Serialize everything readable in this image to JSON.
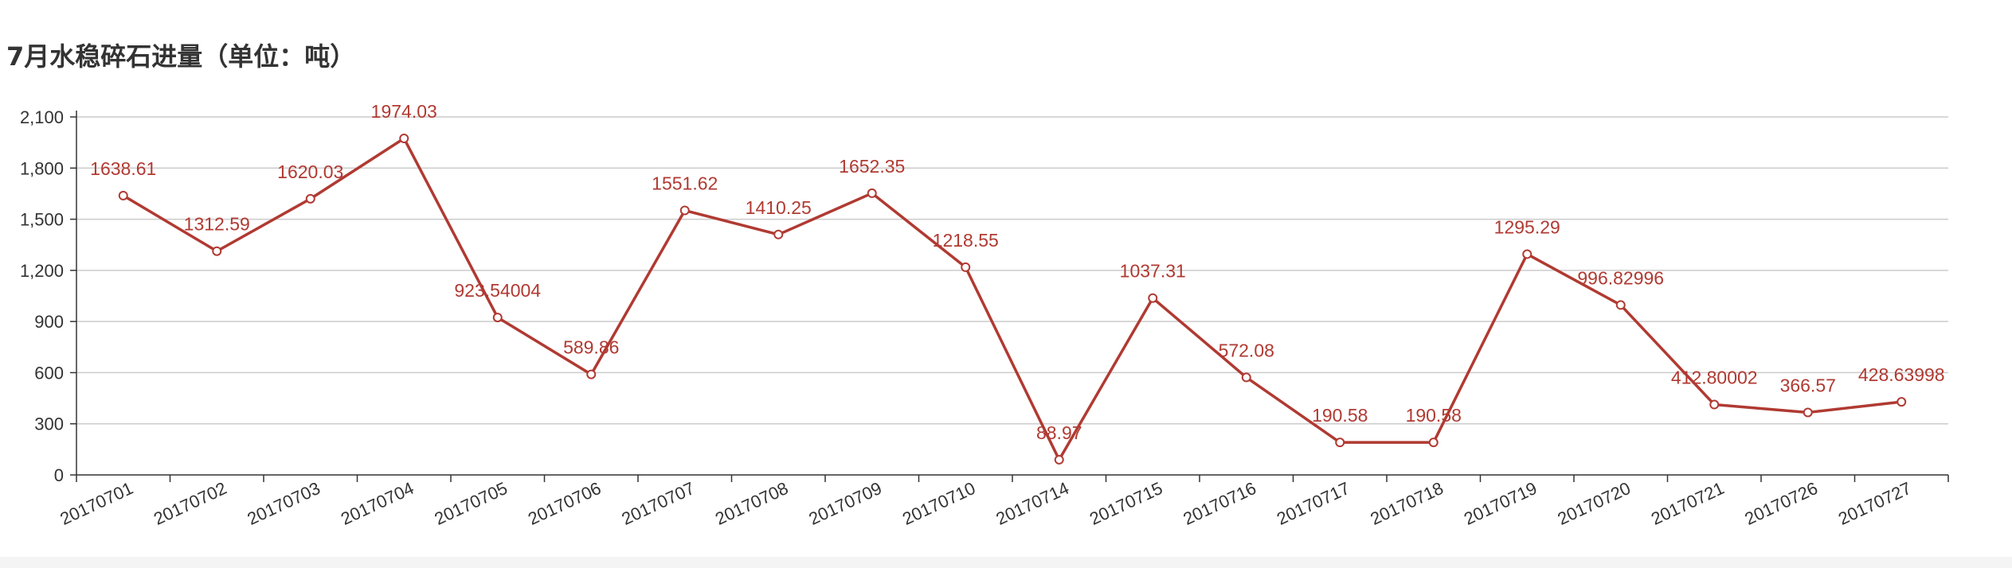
{
  "chart_data": {
    "type": "line",
    "title": "7月水稳碎石进量（单位：吨）",
    "xlabel": "",
    "ylabel": "",
    "categories": [
      "20170701",
      "20170702",
      "20170703",
      "20170704",
      "20170705",
      "20170706",
      "20170707",
      "20170708",
      "20170709",
      "20170710",
      "20170714",
      "20170715",
      "20170716",
      "20170717",
      "20170718",
      "20170719",
      "20170720",
      "20170721",
      "20170726",
      "20170727"
    ],
    "series": [
      {
        "values": [
          1638.61,
          1312.59,
          1620.03,
          1974.03,
          923.54004,
          589.86,
          1551.62,
          1410.25,
          1652.35,
          1218.55,
          88.97,
          1037.31,
          572.08,
          190.58,
          190.58,
          1295.29,
          996.82996,
          412.80002,
          366.57,
          428.63998
        ],
        "labels": [
          "1638.61",
          "1312.59",
          "1620.03",
          "1974.03",
          "923.54004",
          "589.86",
          "1551.62",
          "1410.25",
          "1652.35",
          "1218.55",
          "88.97",
          "1037.31",
          "572.08",
          "190.58",
          "190.58",
          "1295.29",
          "996.82996",
          "412.80002",
          "366.57",
          "428.63998"
        ],
        "color": "#b03a32"
      }
    ],
    "ylim": [
      0,
      2100
    ],
    "yticks": [
      0,
      300,
      600,
      900,
      1200,
      1500,
      1800,
      2100
    ],
    "ytick_labels": [
      "0",
      "300",
      "600",
      "900",
      "1,200",
      "1,500",
      "1,800",
      "2,100"
    ],
    "grid": true,
    "legend": "none",
    "colors": {
      "line": "#b03a32",
      "grid": "#cccccc",
      "axis": "#333333",
      "text": "#333333"
    }
  }
}
